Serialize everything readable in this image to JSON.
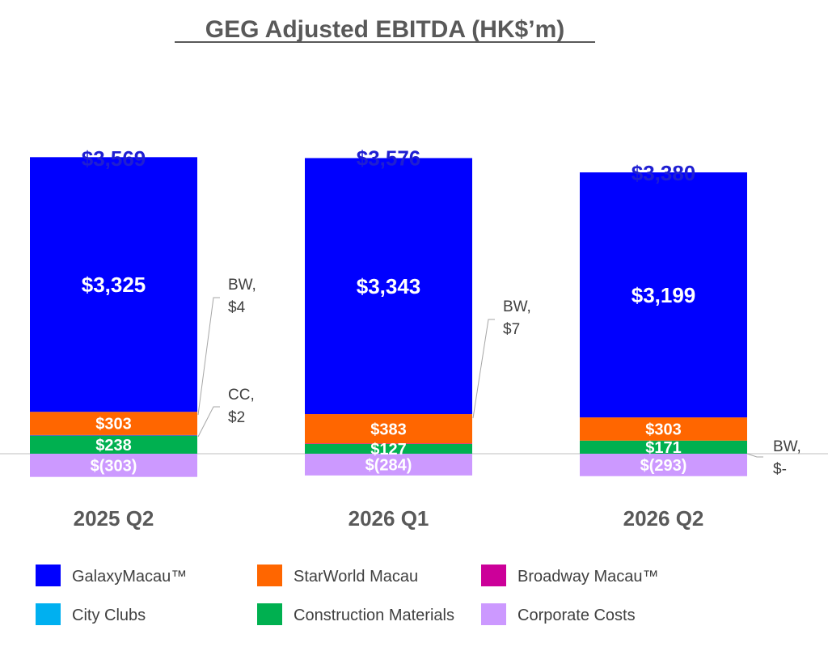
{
  "chart_data": {
    "type": "bar",
    "stacked": true,
    "title": "GEG Adjusted EBITDA (HK$’m)",
    "categories": [
      "2025 Q2",
      "2026 Q1",
      "2026 Q2"
    ],
    "totals": [
      3569,
      3576,
      3380
    ],
    "total_labels": [
      "$3,569",
      "$3,576",
      "$3,380"
    ],
    "series": [
      {
        "name": "GalaxyMacau™",
        "color": "#0000ff",
        "values": [
          3325,
          3343,
          3199
        ],
        "labels": [
          "$3,325",
          "$3,343",
          "$3,199"
        ]
      },
      {
        "name": "StarWorld Macau",
        "color": "#ff6600",
        "values": [
          303,
          383,
          303
        ],
        "labels": [
          "$303",
          "$383",
          "$303"
        ]
      },
      {
        "name": "Broadway Macau™",
        "color": "#cc0099",
        "values": [
          4,
          7,
          0
        ],
        "labels": [
          "",
          "",
          ""
        ]
      },
      {
        "name": "City Clubs",
        "color": "#00b0f0",
        "values": [
          2,
          0,
          0
        ],
        "labels": [
          "",
          "",
          ""
        ]
      },
      {
        "name": "Construction Materials",
        "color": "#00b050",
        "values": [
          238,
          127,
          171
        ],
        "labels": [
          "$238",
          "$127",
          "$171"
        ]
      },
      {
        "name": "Corporate Costs",
        "color": "#cc99ff",
        "values": [
          -303,
          -284,
          -293
        ],
        "labels": [
          "$(303)",
          "$(284)",
          "$(293)"
        ]
      }
    ],
    "callouts": [
      {
        "category": 0,
        "lines": [
          "BW,",
          "$4"
        ]
      },
      {
        "category": 0,
        "lines": [
          "CC,",
          "$2"
        ]
      },
      {
        "category": 1,
        "lines": [
          "BW,",
          "$7"
        ]
      },
      {
        "category": 2,
        "lines": [
          "BW,",
          "$-"
        ]
      }
    ],
    "legend": {
      "placement": "bottom",
      "columns": 3,
      "items": [
        {
          "label": "GalaxyMacau™",
          "color": "#0000ff"
        },
        {
          "label": "StarWorld Macau",
          "color": "#ff6600"
        },
        {
          "label": "Broadway Macau™",
          "color": "#cc0099"
        },
        {
          "label": "City Clubs",
          "color": "#00b0f0"
        },
        {
          "label": "Construction Materials",
          "color": "#00b050"
        },
        {
          "label": "Corporate Costs",
          "color": "#cc99ff"
        }
      ]
    },
    "grid": false
  }
}
